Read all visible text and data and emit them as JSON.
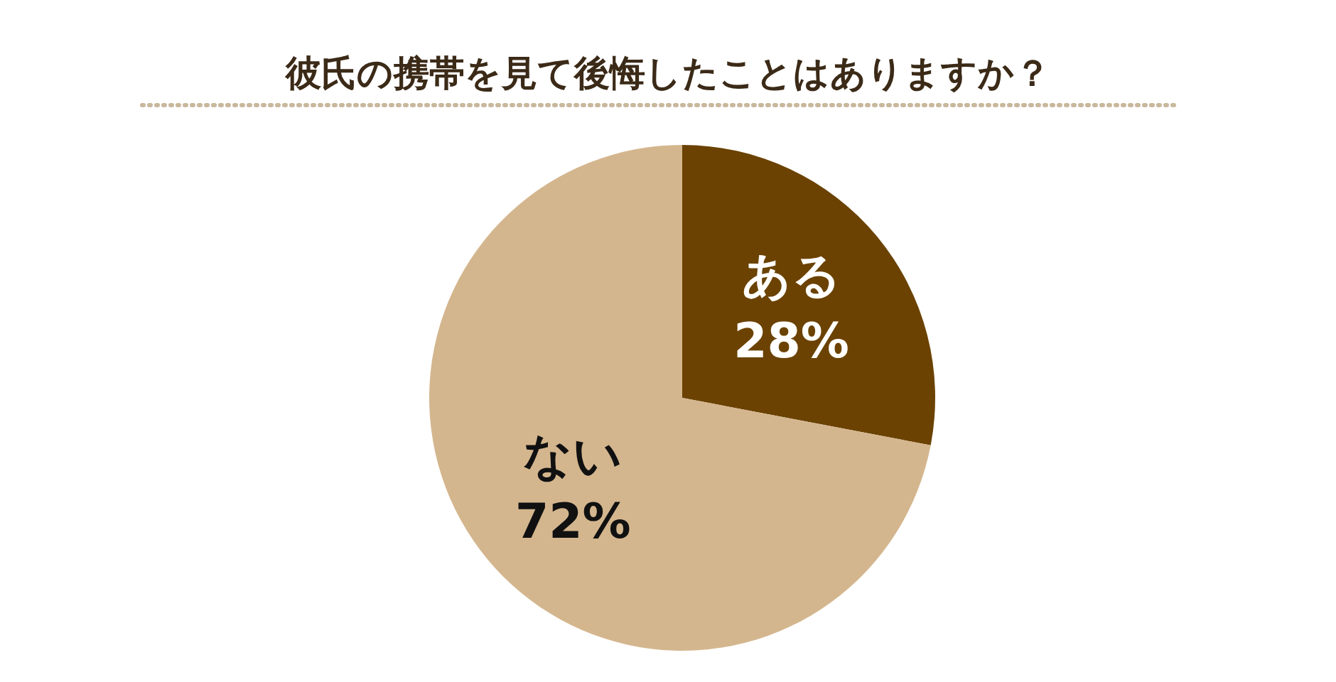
{
  "chart_data": {
    "type": "pie",
    "title": "彼氏の携帯を見て後悔したことはありますか？",
    "categories": [
      "ある",
      "ない"
    ],
    "values": [
      28,
      72
    ],
    "colors": [
      "#6b4201",
      "#d4b68e"
    ],
    "value_labels": [
      "28%",
      "72%"
    ]
  }
}
